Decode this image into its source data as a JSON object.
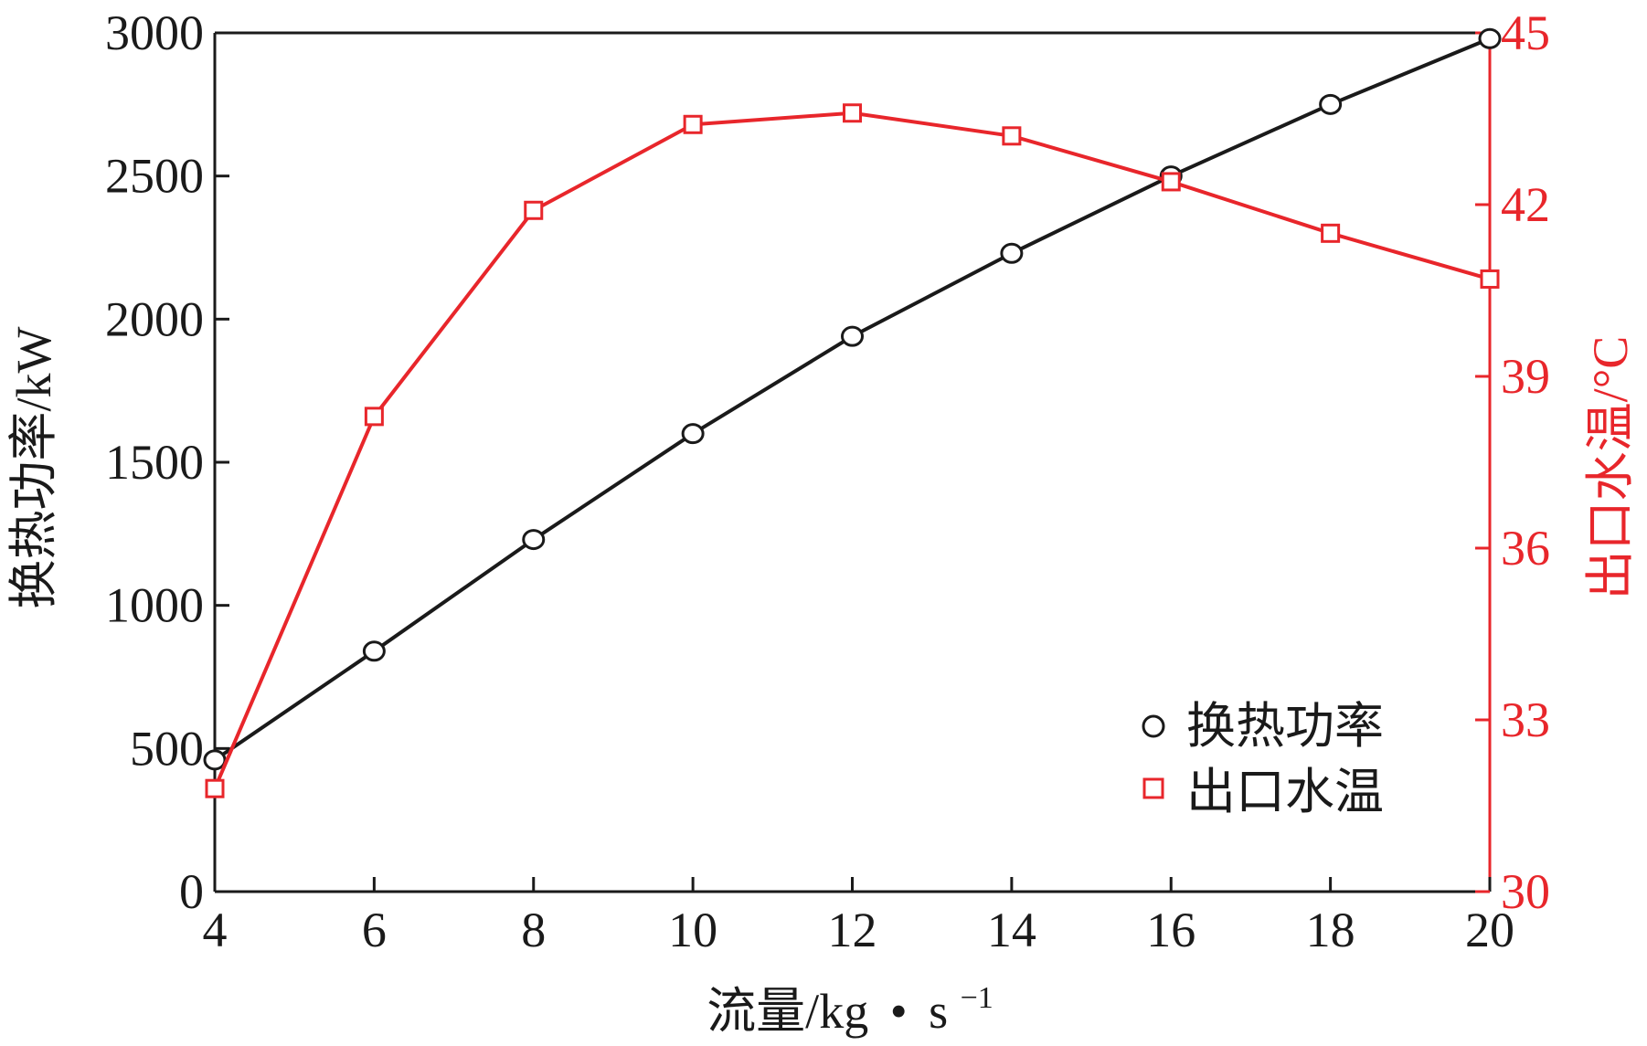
{
  "chart_data": {
    "type": "line",
    "title": "",
    "x": [
      4,
      6,
      8,
      10,
      12,
      14,
      16,
      18,
      20
    ],
    "xlabel_main": "流量/kg",
    "xlabel_dot": "•",
    "xlabel_unit": "s",
    "xlabel_sup": "−1",
    "xlim": [
      4,
      20
    ],
    "xticks": [
      "4",
      "6",
      "8",
      "10",
      "12",
      "14",
      "16",
      "18",
      "20"
    ],
    "ylabel_left": "换热功率/kW",
    "ylim_left": [
      0,
      3000
    ],
    "yticks_left": [
      "0",
      "500",
      "1000",
      "1500",
      "2000",
      "2500",
      "3000"
    ],
    "ylabel_right": "出口水温/°C",
    "ylim_right": [
      30,
      45
    ],
    "yticks_right": [
      "30",
      "33",
      "36",
      "39",
      "42",
      "45"
    ],
    "series": [
      {
        "name": "换热功率",
        "axis": "left",
        "marker": "circle",
        "color": "#1a1a1a",
        "values": [
          460,
          840,
          1230,
          1600,
          1940,
          2230,
          2500,
          2750,
          2980
        ]
      },
      {
        "name": "出口水温",
        "axis": "right",
        "marker": "square",
        "color": "#e8262b",
        "values": [
          31.8,
          38.3,
          41.9,
          43.4,
          43.6,
          43.2,
          42.4,
          41.5,
          40.7
        ]
      }
    ],
    "legend_position": "bottom-right",
    "grid": false
  }
}
